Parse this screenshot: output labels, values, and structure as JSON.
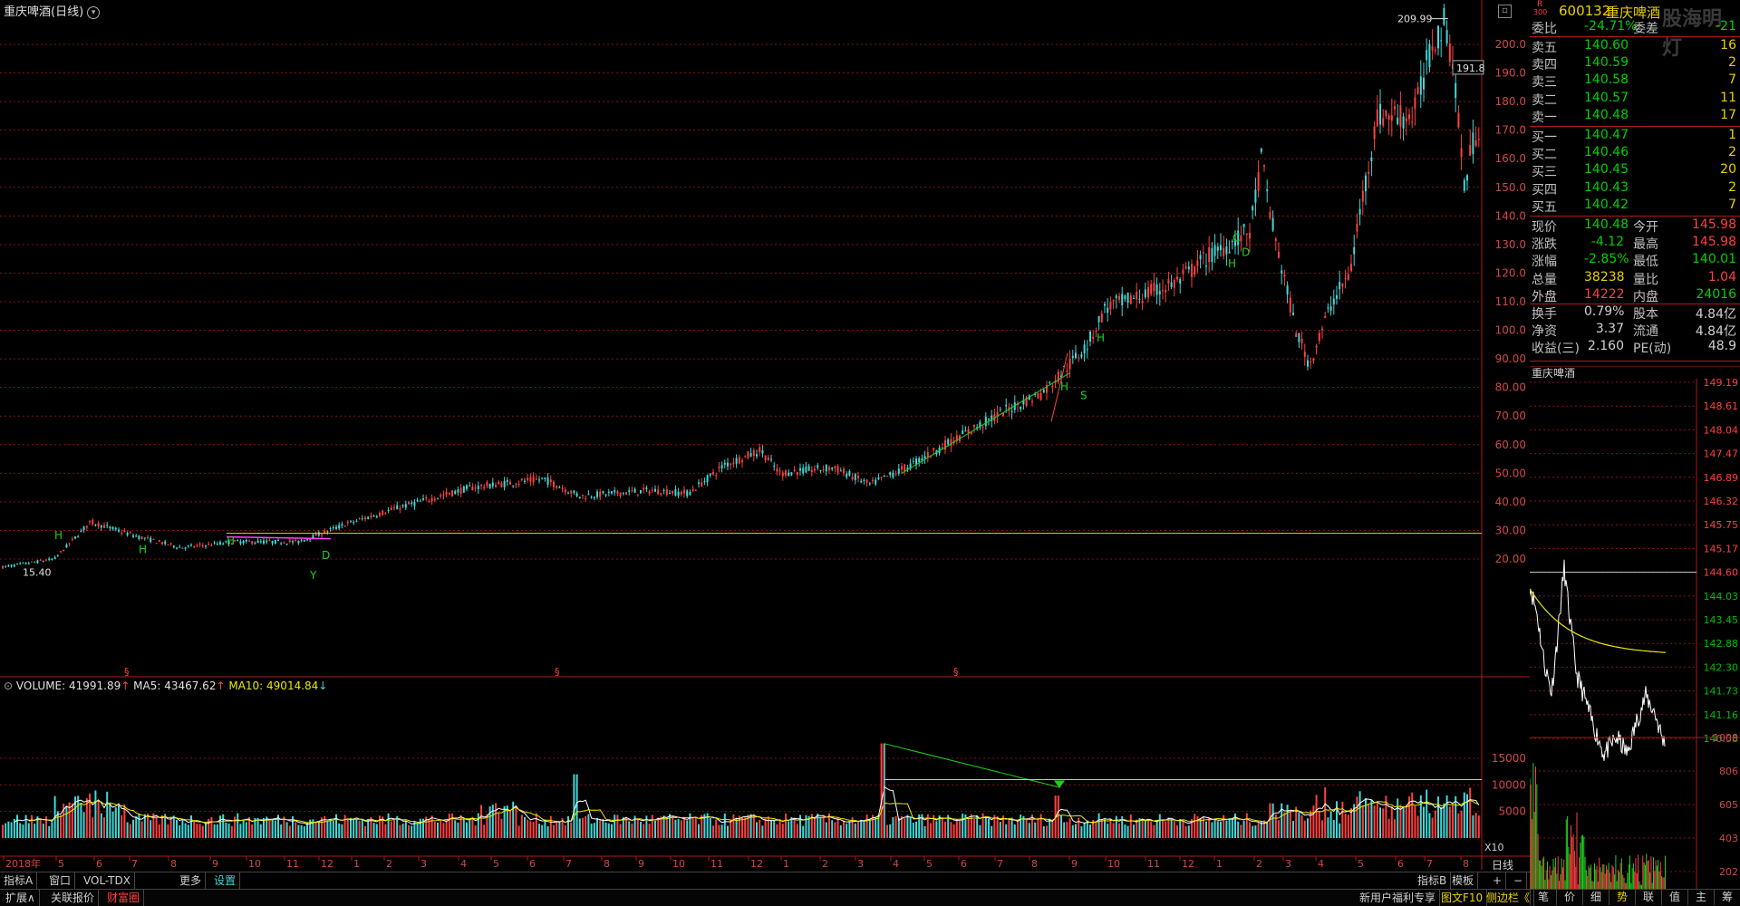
{
  "chart_title": "重庆啤酒(日线)",
  "price_axis": [
    "200.0",
    "190.0",
    "180.0",
    "170.0",
    "160.0",
    "150.0",
    "140.0",
    "130.0",
    "120.0",
    "110.0",
    "100.0",
    "90.00",
    "80.00",
    "70.00",
    "60.00",
    "50.00",
    "40.00",
    "30.00",
    "20.00"
  ],
  "price_axis_values": [
    200,
    190,
    180,
    170,
    160,
    150,
    140,
    130,
    120,
    110,
    100,
    90,
    80,
    70,
    60,
    50,
    40,
    30,
    20
  ],
  "high_marker": "209.99",
  "low_marker": "15.40",
  "last_marker": "191.8",
  "volume_header": {
    "volume": "VOLUME: 41991.89",
    "ma5": "MA5: 43467.62",
    "ma10": "MA10: 49014.84"
  },
  "volume_axis": [
    "15000",
    "10000",
    "5000"
  ],
  "volume_axis_values": [
    15000,
    10000,
    5000
  ],
  "x10_label": "X10",
  "date_axis": [
    "2018年",
    "5",
    "6",
    "7",
    "8",
    "9",
    "10",
    "11",
    "12",
    "1",
    "2",
    "3",
    "4",
    "5",
    "6",
    "7",
    "8",
    "9",
    "10",
    "11",
    "12",
    "1",
    "2",
    "3",
    "4",
    "5",
    "6",
    "7",
    "8",
    "9",
    "10",
    "11",
    "12",
    "1",
    "2",
    "3",
    "4",
    "5",
    "6",
    "7",
    "8"
  ],
  "period_label": "日线",
  "colors": {
    "up": "#ff4040",
    "down": "#40d8d8",
    "ma_yellow": "#e8e800",
    "ma_white": "#ffffff",
    "trend_green": "#20d020",
    "hline_yellow": "#e0e000",
    "grid_red": "#8a1010"
  },
  "stock": {
    "code": "600132",
    "name": "重庆啤酒",
    "badge": "R",
    "badge_num": "300",
    "watermark": "股海明灯"
  },
  "weibi": {
    "label": "委比",
    "value": "-24.71%",
    "label2": "委差",
    "value2": "-21"
  },
  "asks": [
    {
      "label": "卖五",
      "price": "140.60",
      "vol": "16"
    },
    {
      "label": "卖四",
      "price": "140.59",
      "vol": "2"
    },
    {
      "label": "卖三",
      "price": "140.58",
      "vol": "7"
    },
    {
      "label": "卖二",
      "price": "140.57",
      "vol": "11"
    },
    {
      "label": "卖一",
      "price": "140.48",
      "vol": "17"
    }
  ],
  "bids": [
    {
      "label": "买一",
      "price": "140.47",
      "vol": "1"
    },
    {
      "label": "买二",
      "price": "140.46",
      "vol": "2"
    },
    {
      "label": "买三",
      "price": "140.45",
      "vol": "20"
    },
    {
      "label": "买四",
      "price": "140.43",
      "vol": "2"
    },
    {
      "label": "买五",
      "price": "140.42",
      "vol": "7"
    }
  ],
  "quote": [
    {
      "l1": "现价",
      "v1": "140.48",
      "c1": "grn",
      "l2": "今开",
      "v2": "145.98",
      "c2": "red"
    },
    {
      "l1": "涨跌",
      "v1": "-4.12",
      "c1": "grn",
      "l2": "最高",
      "v2": "145.98",
      "c2": "red"
    },
    {
      "l1": "涨幅",
      "v1": "-2.85%",
      "c1": "grn",
      "l2": "最低",
      "v2": "140.01",
      "c2": "grn"
    },
    {
      "l1": "总量",
      "v1": "38238",
      "c1": "yel",
      "l2": "量比",
      "v2": "1.04",
      "c2": "red"
    },
    {
      "l1": "外盘",
      "v1": "14222",
      "c1": "red",
      "l2": "内盘",
      "v2": "24016",
      "c2": "grn"
    },
    {
      "l1": "换手",
      "v1": "0.79%",
      "c1": "wht",
      "l2": "股本",
      "v2": "4.84亿",
      "c2": "wht"
    },
    {
      "l1": "净资",
      "v1": "3.37",
      "c1": "wht",
      "l2": "流通",
      "v2": "4.84亿",
      "c2": "wht"
    },
    {
      "l1": "收益(三)",
      "v1": "2.160",
      "c1": "wht",
      "l2": "PE(动)",
      "v2": "48.9",
      "c2": "wht"
    }
  ],
  "intraday": {
    "title": "重庆啤酒",
    "price_axis": [
      "149.19",
      "148.61",
      "148.04",
      "147.47",
      "146.89",
      "146.32",
      "145.75",
      "145.17",
      "144.60",
      "144.03",
      "143.45",
      "142.88",
      "142.30",
      "141.73",
      "141.16",
      "140.58"
    ],
    "vol_axis": [
      "1008",
      "806",
      "605",
      "403",
      "202"
    ]
  },
  "bottom_tabs": [
    "指标A",
    "窗口",
    "VOL-TDX",
    "更多",
    "设置"
  ],
  "bottom_right": [
    "指标B",
    "模板",
    "+",
    "−"
  ],
  "status_bar": {
    "left": [
      "扩展∧",
      "关联报价",
      "财富圈"
    ],
    "promo": "新用户福利专享",
    "f10": "图文F10",
    "sidebar": "侧边栏《"
  },
  "mini_tabs": [
    "笔",
    "价",
    "细",
    "势",
    "联",
    "值",
    "主",
    "筹"
  ]
}
